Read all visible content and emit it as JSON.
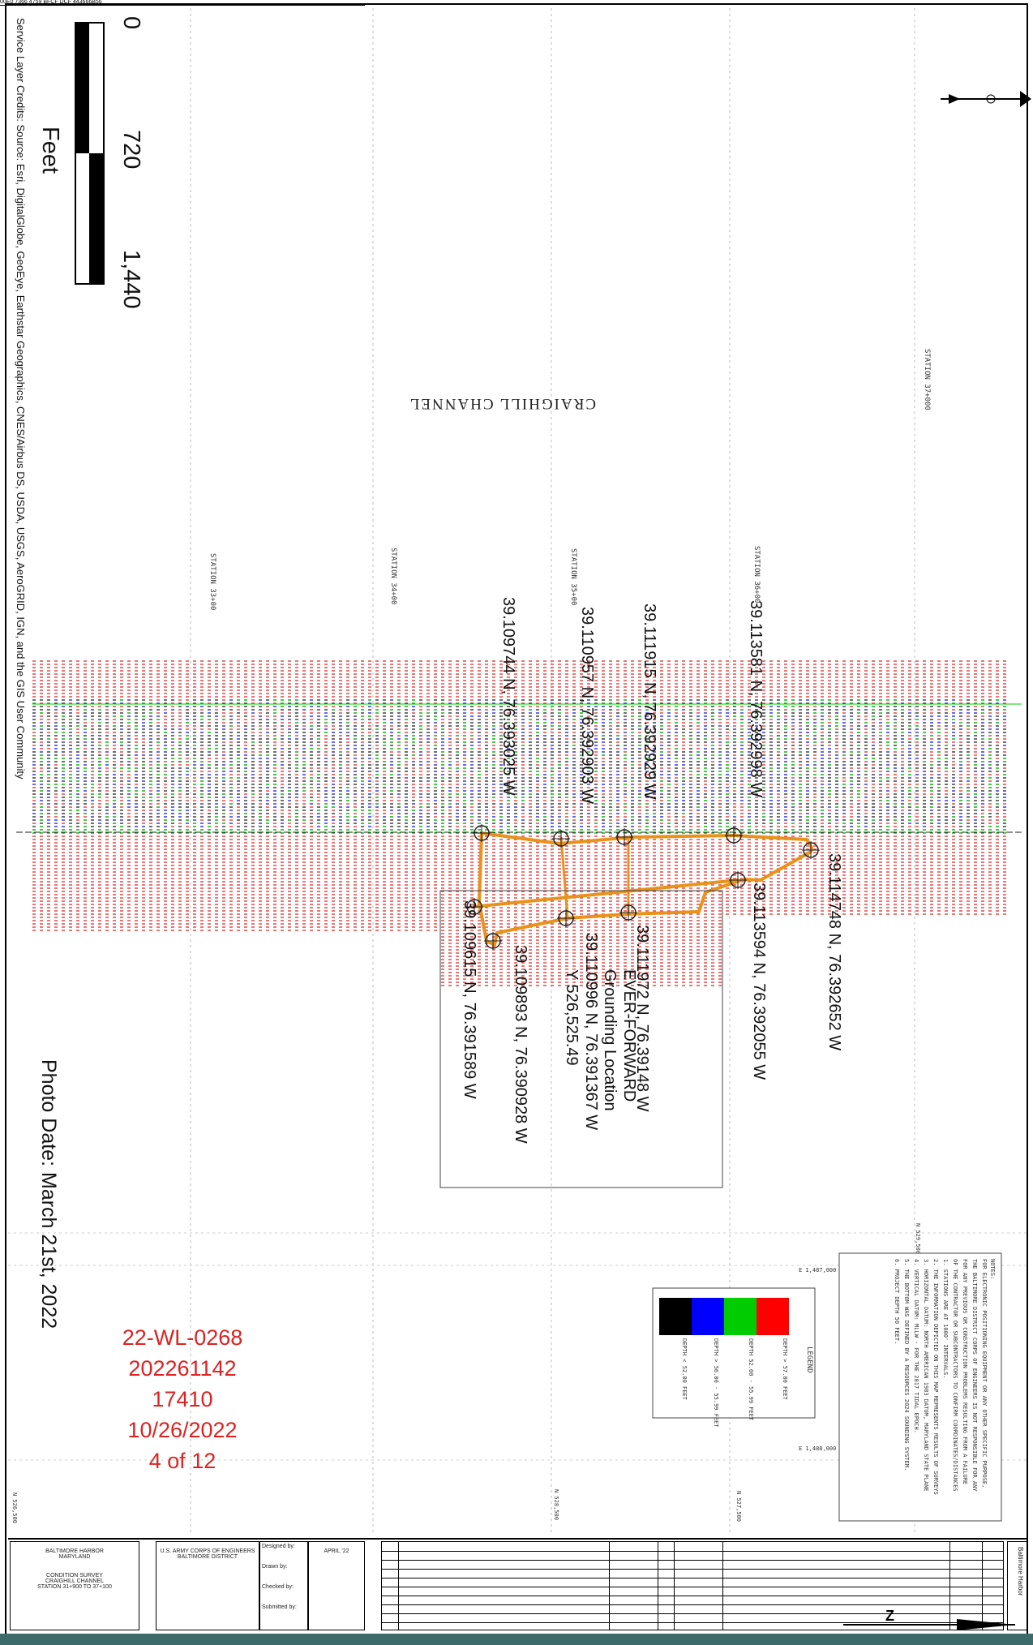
{
  "top_header": "00E0 7366 4759 BFCF DCF 443666B56",
  "scale_bar": {
    "ticks": [
      "0",
      "720",
      "1,440"
    ],
    "unit": "Feet",
    "credits": "Service Layer Credits: Source: Esri, DigitalGlobe, GeoEye, Earthstar Geographics, CNES/Airbus DS, USDA, USGS, AeroGRID, IGN, and the GIS User Community"
  },
  "photo_date": "Photo Date: March 21st, 2022",
  "channel_name": "CRAIGHILL CHANNEL",
  "stations": [
    "STATION 33+00",
    "STATION 34+00",
    "STATION 35+00",
    "STATION 36+00",
    "STATION 37+000"
  ],
  "grid_labels": [
    "N 526,500",
    "N 527,500",
    "N 528,500",
    "N 529,500",
    "E 1,487,000",
    "E 1,488,000"
  ],
  "coordinates": [
    "39.109744 N, 76.393025 W",
    "39.110957 N, 76.392903 W",
    "39.111915 N, 76.392929 W",
    "39.113581 N, 76.392998 W",
    "39.114748 N, 76.392652 W",
    "39.113594 N, 76.392055 W",
    "39.111972 N, 76.39148 W",
    "39.110996 N, 76.391367 W",
    "39.109893 N, 76.390928 W",
    "39.109615 N, 76.391589 W"
  ],
  "callout": {
    "line1": "EVER-FORWARD",
    "line2": "Grounding Location",
    "line3": "Y 526,525.49"
  },
  "stamp": [
    "22-WL-0268",
    "202261142",
    "17410",
    "10/26/2022",
    "4 of 12"
  ],
  "legend": {
    "title": "LEGEND",
    "colors": [
      "#000000",
      "#0000ff",
      "#00cc00",
      "#ff0000"
    ],
    "rows": [
      "DEPTH < 52.00 FEET",
      "DEPTH 52.00 - 55.99 FEET",
      "DEPTH > 56.00 - 55.99 FEET",
      "DEPTH > 57.00 FEET"
    ]
  },
  "notes": {
    "title": "NOTES:",
    "lines": [
      "FOR ELECTRONIC POSITIONING EQUIPMENT OR ANY OTHER SPECIFIC PURPOSE,",
      "THE BALTIMORE DISTRICT CORPS OF ENGINEERS IS NOT RESPONSIBLE FOR ANY",
      "FOR ANY PREVIOUS OR CONSTRUCTION PROBLEMS RESULTING FROM A FAILURE",
      "OF THE CONTRACTOR OR SUBCONTRACTORS TO CONFIRM COORDINATES/DISTANCES",
      "1. STATIONS ARE AT 1000' INTERVALS.",
      "2. THE INFORMATION DEPICTED ON THIS MAP REPRESENTS RESULTS OF SURVEYS",
      "3. HORIZONTAL DATUM: NORTH AMERICAN 1983 DATUM, MARYLAND STATE PLANE",
      "4. VERTICAL DATUM: MLLW - FOR THE 2017 TIDAL EPOCH.",
      "5. THE BOTTOM WAS DEFINED BY A RESOURCES 2024 SOUNDING SYSTEM.",
      "6. PROJECT DEPTH 50 FEET."
    ]
  },
  "north_label": "N",
  "title_block": {
    "project_lines": [
      "BALTIMORE HARBOR",
      "MARYLAND",
      "CONDITION SURVEY",
      "CRAIGHILL CHANNEL",
      "STATION 31+900 TO 37+100"
    ],
    "agency_lines": [
      "U.S. ARMY CORPS OF ENGINEERS",
      "BALTIMORE DISTRICT"
    ],
    "date": "APRIL '22",
    "sheet": "Baltimore Harbor",
    "designed": "Designed by:",
    "drawn": "Drawn by:",
    "checked": "Checked by:",
    "submitted": "Submitted by:"
  },
  "footer_letters": [
    "N",
    "Z"
  ]
}
